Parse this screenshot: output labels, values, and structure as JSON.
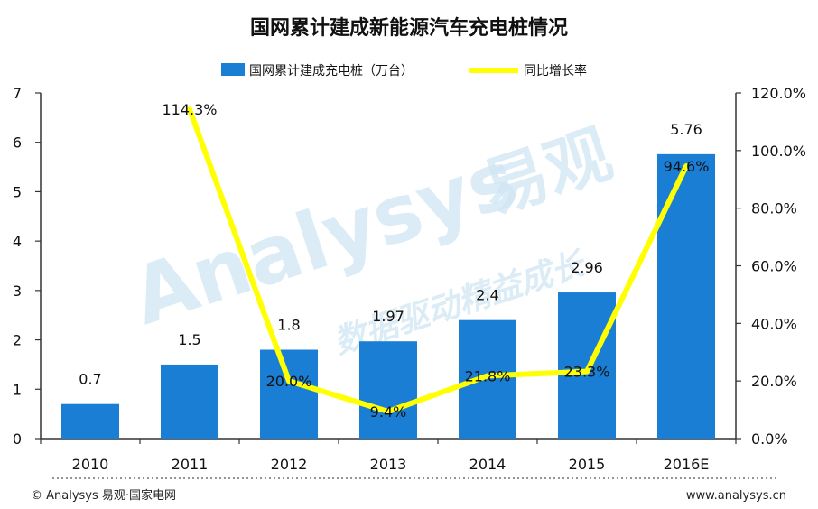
{
  "chart_data": {
    "type": "bar",
    "title": "国网累计建成新能源汽车充电桩情况",
    "categories": [
      "2010",
      "2011",
      "2012",
      "2013",
      "2014",
      "2015",
      "2016E"
    ],
    "series": [
      {
        "name": "国网累计建成充电桩（万台）",
        "type": "bar",
        "axis": "left",
        "color": "#1a7fd4",
        "values": [
          0.7,
          1.5,
          1.8,
          1.97,
          2.4,
          2.96,
          5.76
        ],
        "labels": [
          "0.7",
          "1.5",
          "1.8",
          "1.97",
          "2.4",
          "2.96",
          "5.76"
        ]
      },
      {
        "name": "同比增长率",
        "type": "line",
        "axis": "right",
        "color": "#ffff00",
        "values": [
          null,
          114.3,
          20.0,
          9.4,
          21.8,
          23.3,
          94.6
        ],
        "labels": [
          null,
          "114.3%",
          "20.0%",
          "9.4%",
          "21.8%",
          "23.3%",
          "94.6%"
        ]
      }
    ],
    "y_left": {
      "min": 0,
      "max": 7,
      "ticks": [
        "0",
        "1",
        "2",
        "3",
        "4",
        "5",
        "6",
        "7"
      ]
    },
    "y_right": {
      "min": 0,
      "max": 120,
      "ticks": [
        "0.0%",
        "20.0%",
        "40.0%",
        "60.0%",
        "80.0%",
        "100.0%",
        "120.0%"
      ]
    },
    "legend": "top-center",
    "grid": false
  },
  "watermark": {
    "brand": "Analysys",
    "brand_cn": "易观",
    "slogan": "数据驱动精益成长"
  },
  "footer": {
    "left": "© Analysys 易观·国家电网",
    "right": "www.analysys.cn"
  }
}
